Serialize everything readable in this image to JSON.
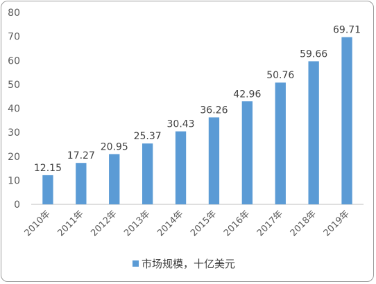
{
  "chart_data": {
    "type": "bar",
    "categories": [
      "2010年",
      "2011年",
      "2012年",
      "2013年",
      "2014年",
      "2015年",
      "2016年",
      "2017年",
      "2018年",
      "2019年"
    ],
    "series": [
      {
        "name": "市场规模，十亿美元",
        "values": [
          12.15,
          17.27,
          20.95,
          25.37,
          30.43,
          36.26,
          42.96,
          50.76,
          59.66,
          69.71
        ],
        "data_labels": [
          "12.15",
          "17.27",
          "20.95",
          "25.37",
          "30.43",
          "36.26",
          "42.96",
          "50.76",
          "59.66",
          "69.71"
        ]
      }
    ],
    "ylim": [
      0,
      80
    ],
    "yticks": [
      0,
      10,
      20,
      30,
      40,
      50,
      60,
      70,
      80
    ],
    "grid": false,
    "legend_position": "bottom",
    "colors": {
      "bar": "#5b9bd5",
      "axis": "#bfbfbf",
      "frame": "#9a9a9a"
    }
  }
}
